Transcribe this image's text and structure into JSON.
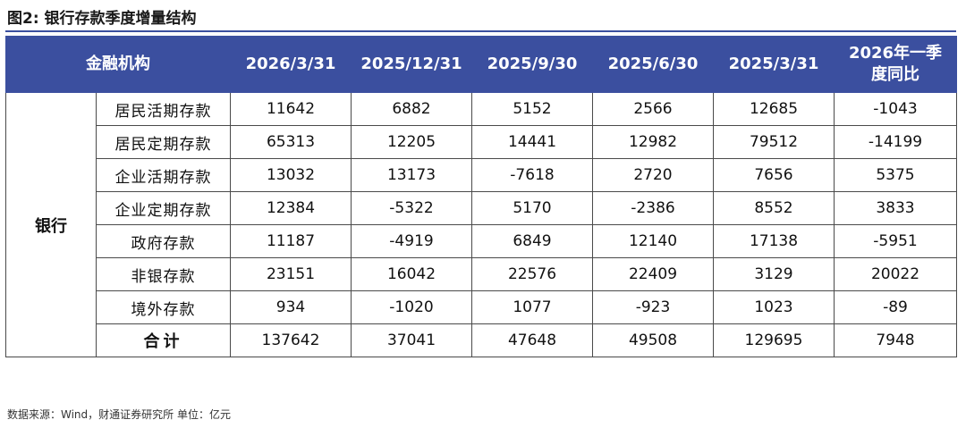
{
  "title": "图2: 银行存款季度增量结构",
  "table": {
    "headers": [
      "金融机构",
      "2026/3/31",
      "2025/12/31",
      "2025/9/30",
      "2025/6/30",
      "2025/3/31",
      "2026年一季度同比"
    ],
    "institution": "银行",
    "rows": [
      {
        "label": "居民活期存款",
        "values": [
          "11642",
          "6882",
          "5152",
          "2566",
          "12685",
          "-1043"
        ]
      },
      {
        "label": "居民定期存款",
        "values": [
          "65313",
          "12205",
          "14441",
          "12982",
          "79512",
          "-14199"
        ]
      },
      {
        "label": "企业活期存款",
        "values": [
          "13032",
          "13173",
          "-7618",
          "2720",
          "7656",
          "5375"
        ]
      },
      {
        "label": "企业定期存款",
        "values": [
          "12384",
          "-5322",
          "5170",
          "-2386",
          "8552",
          "3833"
        ]
      },
      {
        "label": "政府存款",
        "values": [
          "11187",
          "-4919",
          "6849",
          "12140",
          "17138",
          "-5951"
        ]
      },
      {
        "label": "非银存款",
        "values": [
          "23151",
          "16042",
          "22576",
          "22409",
          "3129",
          "20022"
        ]
      },
      {
        "label": "境外存款",
        "values": [
          "934",
          "-1020",
          "1077",
          "-923",
          "1023",
          "-89"
        ]
      }
    ],
    "total": {
      "label": "合计",
      "values": [
        "137642",
        "37041",
        "47648",
        "49508",
        "129695",
        "7948"
      ]
    }
  },
  "footer": "数据来源：Wind，财通证券研究所 单位：亿元",
  "colors": {
    "header_bg": "#3b4f9f",
    "header_text": "#ffffff",
    "border": "#4a4a4a"
  }
}
